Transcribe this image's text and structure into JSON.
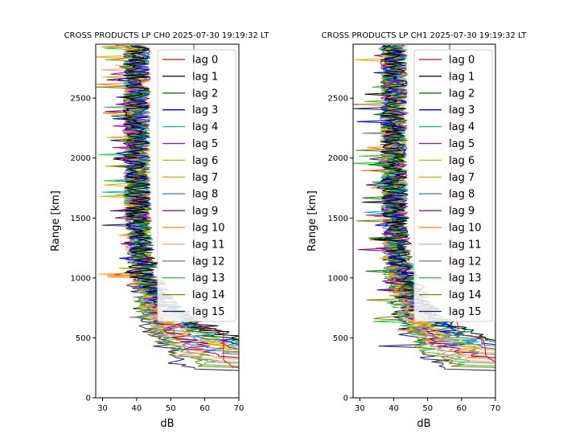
{
  "colors": {
    "lag_colors": [
      "#ff0000",
      "#000000",
      "#008000",
      "#0000ff",
      "#00bfbf",
      "#bf00bf",
      "#bfbf00",
      "#ffa500",
      "#4682d2",
      "#800080",
      "#ff7f0e",
      "#f0a07a",
      "#808080",
      "#32cd32",
      "#808000",
      "#191970"
    ],
    "background": "#ffffff"
  },
  "chart_data": [
    {
      "type": "line",
      "title": "CROSS PRODUCTS LP CH0 2025-07-30 19:19:32 LT",
      "xlabel": "dB",
      "ylabel": "Range [km]",
      "xlim": [
        28,
        70
      ],
      "ylim": [
        0,
        2950
      ],
      "xticks": [
        "30",
        "40",
        "50",
        "60",
        "70"
      ],
      "yticks": [
        "0",
        "500",
        "1000",
        "1500",
        "2000",
        "2500"
      ],
      "grid": false,
      "legend_position": "upper-right",
      "lag0_profile": {
        "range": [
          0,
          250,
          260,
          290,
          300,
          320,
          360,
          400,
          450,
          500,
          540,
          560,
          600,
          700,
          800,
          1000,
          1200,
          1500,
          2000,
          2500,
          2900,
          2950
        ],
        "db": [
          70,
          70,
          68,
          67,
          66,
          65.5,
          65.5,
          65.5,
          65.5,
          65.5,
          65.5,
          65,
          58,
          57.5,
          57.2,
          57,
          57,
          56.8,
          56.8,
          56.8,
          56.8,
          56.8
        ]
      },
      "near_range_floor": {
        "lag_order_bottom_to_top": [
          15,
          14,
          13,
          12,
          11,
          10,
          9,
          8,
          7,
          6,
          5,
          4,
          3,
          2,
          1,
          0
        ],
        "floor_db": [
          57,
          58,
          60,
          61,
          62,
          63,
          64,
          65,
          66,
          67,
          67,
          67,
          68,
          68,
          68,
          70
        ]
      },
      "noise_floor_db": {
        "center": 40,
        "spread": 4
      },
      "series": [
        {
          "name": "lag 0"
        },
        {
          "name": "lag 1"
        },
        {
          "name": "lag 2"
        },
        {
          "name": "lag 3"
        },
        {
          "name": "lag 4"
        },
        {
          "name": "lag 5"
        },
        {
          "name": "lag 6"
        },
        {
          "name": "lag 7"
        },
        {
          "name": "lag 8"
        },
        {
          "name": "lag 9"
        },
        {
          "name": "lag 10"
        },
        {
          "name": "lag 11"
        },
        {
          "name": "lag 12"
        },
        {
          "name": "lag 13"
        },
        {
          "name": "lag 14"
        },
        {
          "name": "lag 15"
        }
      ]
    },
    {
      "type": "line",
      "title": "CROSS PRODUCTS LP CH1 2025-07-30 19:19:32 LT",
      "xlabel": "dB",
      "ylabel": "Range [km]",
      "xlim": [
        28,
        70
      ],
      "ylim": [
        0,
        2950
      ],
      "xticks": [
        "30",
        "40",
        "50",
        "60",
        "70"
      ],
      "yticks": [
        "0",
        "500",
        "1000",
        "1500",
        "2000",
        "2500"
      ],
      "grid": false,
      "legend_position": "upper-right",
      "lag0_profile": {
        "range": [
          0,
          300,
          330,
          360,
          400,
          480,
          500,
          520,
          560,
          600,
          700,
          800,
          1000,
          1200,
          1500,
          2000,
          2500,
          2900,
          2950
        ],
        "db": [
          70,
          70,
          68,
          67,
          67,
          66.5,
          66,
          61,
          59,
          59,
          58,
          57.5,
          57,
          57,
          57,
          57,
          57,
          56.5,
          56.5
        ]
      },
      "near_range_floor": {
        "lag_order_bottom_to_top": [
          15,
          14,
          13,
          12,
          11,
          10,
          9,
          8,
          7,
          6,
          5,
          4,
          3,
          2,
          1,
          0
        ],
        "floor_db": [
          55,
          57,
          59,
          60,
          61,
          62,
          63,
          64,
          64,
          65,
          66,
          66,
          66,
          67,
          67,
          70
        ]
      },
      "noise_floor_db": {
        "center": 40,
        "spread": 4
      },
      "series": [
        {
          "name": "lag 0"
        },
        {
          "name": "lag 1"
        },
        {
          "name": "lag 2"
        },
        {
          "name": "lag 3"
        },
        {
          "name": "lag 4"
        },
        {
          "name": "lag 5"
        },
        {
          "name": "lag 6"
        },
        {
          "name": "lag 7"
        },
        {
          "name": "lag 8"
        },
        {
          "name": "lag 9"
        },
        {
          "name": "lag 10"
        },
        {
          "name": "lag 11"
        },
        {
          "name": "lag 12"
        },
        {
          "name": "lag 13"
        },
        {
          "name": "lag 14"
        },
        {
          "name": "lag 15"
        }
      ]
    }
  ]
}
